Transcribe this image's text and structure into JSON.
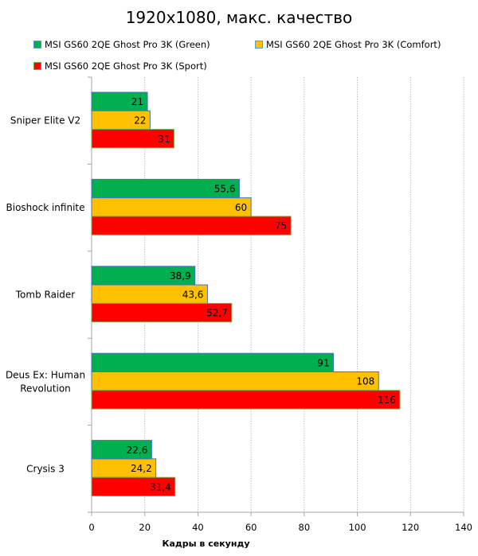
{
  "chart_data": {
    "type": "bar",
    "orientation": "horizontal",
    "title": "1920x1080, макс. качество",
    "xlabel": "Кадры  в секунду",
    "ylabel": "",
    "xlim": [
      0,
      140
    ],
    "xticks": [
      0,
      20,
      40,
      60,
      80,
      100,
      120,
      140
    ],
    "grid": "vertical dotted",
    "legend_position": "top",
    "categories": [
      "Sniper Elite V2",
      "Bioshock infinite",
      "Tomb Raider",
      "Deus Ex: Human Revolution",
      "Crysis 3"
    ],
    "series": [
      {
        "name": "MSI GS60 2QE Ghost Pro 3K (Green)",
        "color": "#00b050",
        "values": [
          21,
          55.6,
          38.9,
          91,
          22.6
        ],
        "labels": [
          "21",
          "55,6",
          "38,9",
          "91",
          "22,6"
        ]
      },
      {
        "name": "MSI GS60 2QE Ghost Pro 3K (Comfort)",
        "color": "#ffc000",
        "values": [
          22,
          60,
          43.6,
          108,
          24.2
        ],
        "labels": [
          "22",
          "60",
          "43,6",
          "108",
          "24,2"
        ]
      },
      {
        "name": "MSI GS60 2QE Ghost Pro 3K (Sport)",
        "color": "#ff0000",
        "values": [
          31,
          75,
          52.7,
          116,
          31.4
        ],
        "labels": [
          "31",
          "75",
          "52,7",
          "116",
          "31,4"
        ]
      }
    ]
  }
}
